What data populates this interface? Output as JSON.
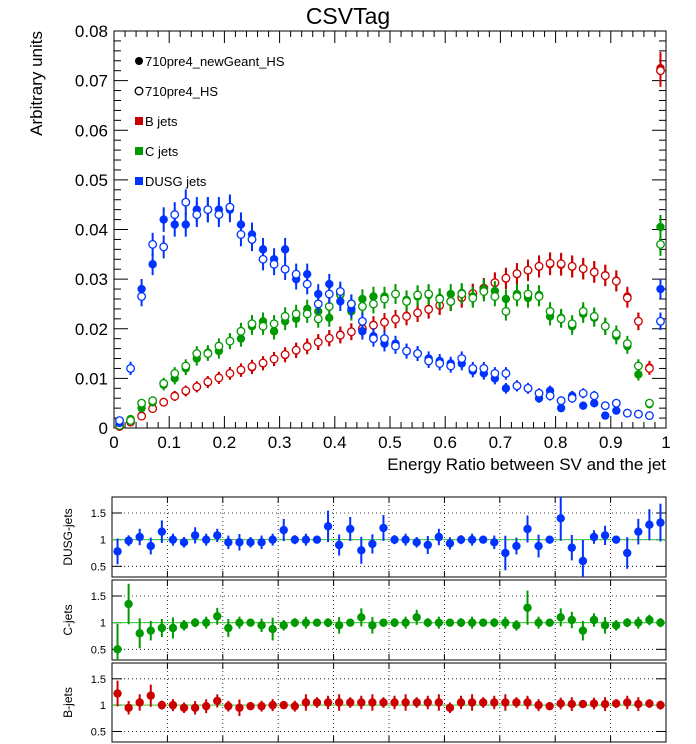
{
  "chart_data": [
    {
      "type": "scatter",
      "title": "CSVTag",
      "xlabel": "Energy Ratio between SV and the jet",
      "ylabel": "Arbitrary units",
      "xlim": [
        0,
        1
      ],
      "ylim": [
        0,
        0.08
      ],
      "x_ticks": [
        "0",
        "0.1",
        "0.2",
        "0.3",
        "0.4",
        "0.5",
        "0.6",
        "0.7",
        "0.8",
        "0.9",
        "1"
      ],
      "y_ticks": [
        "0",
        "0.01",
        "0.02",
        "0.03",
        "0.04",
        "0.05",
        "0.06",
        "0.07",
        "0.08"
      ],
      "legend_position": "top-left",
      "legend": [
        {
          "label": "710pre4_newGeant_HS",
          "marker": "filled",
          "color": "#000000"
        },
        {
          "label": "710pre4_HS",
          "marker": "open",
          "color": "#000000"
        },
        {
          "label": "B jets",
          "marker": "square",
          "color": "#cc0000"
        },
        {
          "label": "C jets",
          "marker": "square",
          "color": "#009900"
        },
        {
          "label": "DUSG jets",
          "marker": "square",
          "color": "#0033ff"
        }
      ],
      "x": [
        0.01,
        0.03,
        0.05,
        0.07,
        0.09,
        0.11,
        0.13,
        0.15,
        0.17,
        0.19,
        0.21,
        0.23,
        0.25,
        0.27,
        0.29,
        0.31,
        0.33,
        0.35,
        0.37,
        0.39,
        0.41,
        0.43,
        0.45,
        0.47,
        0.49,
        0.51,
        0.53,
        0.55,
        0.57,
        0.59,
        0.61,
        0.63,
        0.65,
        0.67,
        0.69,
        0.71,
        0.73,
        0.75,
        0.77,
        0.79,
        0.81,
        0.83,
        0.85,
        0.87,
        0.89,
        0.91,
        0.93,
        0.95,
        0.97,
        0.99
      ],
      "series": [
        {
          "name": "B jets",
          "color": "#cc0000",
          "marker": "filled",
          "values": [
            0.0003,
            0.0013,
            0.0025,
            0.004,
            0.0052,
            0.0065,
            0.0074,
            0.0083,
            0.0092,
            0.0101,
            0.011,
            0.0116,
            0.0122,
            0.013,
            0.0139,
            0.0147,
            0.0156,
            0.0165,
            0.0173,
            0.0181,
            0.0188,
            0.0194,
            0.0201,
            0.0208,
            0.0214,
            0.022,
            0.0226,
            0.0232,
            0.024,
            0.0247,
            0.0255,
            0.0262,
            0.027,
            0.0281,
            0.0292,
            0.0301,
            0.031,
            0.0318,
            0.0325,
            0.033,
            0.0329,
            0.0325,
            0.0321,
            0.0315,
            0.0308,
            0.0297,
            0.0265,
            0.0215,
            0.0122,
            0.0725
          ]
        },
        {
          "name": "B jets",
          "color": "#cc0000",
          "marker": "open",
          "values": [
            0.0003,
            0.0012,
            0.0024,
            0.0039,
            0.0052,
            0.0064,
            0.0075,
            0.0083,
            0.0093,
            0.0101,
            0.011,
            0.0117,
            0.0124,
            0.0131,
            0.0139,
            0.0148,
            0.0157,
            0.0164,
            0.0173,
            0.0181,
            0.0187,
            0.0194,
            0.02,
            0.0207,
            0.0213,
            0.0219,
            0.0225,
            0.0232,
            0.0239,
            0.0247,
            0.0255,
            0.0263,
            0.0271,
            0.0282,
            0.0293,
            0.0302,
            0.0311,
            0.0318,
            0.0326,
            0.0332,
            0.0331,
            0.0326,
            0.0321,
            0.0314,
            0.0307,
            0.0296,
            0.0262,
            0.0215,
            0.012,
            0.072
          ]
        },
        {
          "name": "C jets",
          "color": "#009900",
          "marker": "filled",
          "values": [
            0.0005,
            0.0018,
            0.004,
            0.0052,
            0.0087,
            0.01,
            0.012,
            0.014,
            0.0152,
            0.0155,
            0.0175,
            0.018,
            0.0205,
            0.0215,
            0.0195,
            0.0215,
            0.022,
            0.024,
            0.0235,
            0.0222,
            0.0268,
            0.0235,
            0.026,
            0.0265,
            0.0265,
            0.027,
            0.0258,
            0.0265,
            0.0268,
            0.0262,
            0.027,
            0.0272,
            0.0265,
            0.028,
            0.0276,
            0.026,
            0.027,
            0.0262,
            0.0268,
            0.0225,
            0.0222,
            0.0205,
            0.023,
            0.0222,
            0.0205,
            0.0185,
            0.0165,
            0.0108,
            0.0048,
            0.0405
          ]
        },
        {
          "name": "C jets",
          "color": "#009900",
          "marker": "open",
          "values": [
            0.0005,
            0.0015,
            0.005,
            0.0055,
            0.009,
            0.011,
            0.0125,
            0.015,
            0.015,
            0.0165,
            0.0175,
            0.0195,
            0.021,
            0.0205,
            0.021,
            0.0225,
            0.023,
            0.023,
            0.022,
            0.0245,
            0.027,
            0.025,
            0.0245,
            0.025,
            0.026,
            0.027,
            0.0255,
            0.0268,
            0.027,
            0.026,
            0.0255,
            0.027,
            0.0262,
            0.0275,
            0.0265,
            0.0235,
            0.0265,
            0.027,
            0.0265,
            0.0235,
            0.022,
            0.021,
            0.0235,
            0.0225,
            0.0205,
            0.019,
            0.017,
            0.0125,
            0.005,
            0.037
          ]
        },
        {
          "name": "DUSG jets",
          "color": "#0033ff",
          "marker": "filled",
          "values": [
            0.001,
            0.012,
            0.028,
            0.033,
            0.042,
            0.041,
            0.041,
            0.044,
            0.044,
            0.044,
            0.044,
            0.041,
            0.039,
            0.036,
            0.034,
            0.036,
            0.03,
            0.031,
            0.027,
            0.029,
            0.0255,
            0.024,
            0.0195,
            0.0185,
            0.017,
            0.017,
            0.0155,
            0.015,
            0.014,
            0.0135,
            0.013,
            0.013,
            0.0115,
            0.011,
            0.01,
            0.008,
            0.0085,
            0.008,
            0.006,
            0.0075,
            0.004,
            0.0065,
            0.0045,
            0.005,
            0.0025,
            0.0035,
            0.003,
            0.0028,
            0.0025,
            0.028
          ]
        },
        {
          "name": "DUSG jets",
          "color": "#0033ff",
          "marker": "open",
          "values": [
            0.0015,
            0.012,
            0.0265,
            0.037,
            0.0365,
            0.043,
            0.0455,
            0.043,
            0.044,
            0.043,
            0.0445,
            0.039,
            0.038,
            0.034,
            0.033,
            0.032,
            0.031,
            0.029,
            0.025,
            0.027,
            0.0275,
            0.025,
            0.0215,
            0.018,
            0.018,
            0.0165,
            0.0155,
            0.015,
            0.0135,
            0.013,
            0.0125,
            0.014,
            0.012,
            0.012,
            0.011,
            0.011,
            0.0085,
            0.008,
            0.007,
            0.0065,
            0.0055,
            0.006,
            0.007,
            0.0065,
            0.0045,
            0.005,
            0.003,
            0.0028,
            0.0025,
            0.0215
          ]
        }
      ]
    },
    {
      "type": "scatter",
      "ylabel": "DUSG-jets",
      "ylim": [
        0.3,
        1.8
      ],
      "y_ticks": [
        "0.5",
        "1",
        "1.5"
      ],
      "reference_line": 1,
      "x": [
        0.01,
        0.03,
        0.05,
        0.07,
        0.09,
        0.11,
        0.13,
        0.15,
        0.17,
        0.19,
        0.21,
        0.23,
        0.25,
        0.27,
        0.29,
        0.31,
        0.33,
        0.35,
        0.37,
        0.39,
        0.41,
        0.43,
        0.45,
        0.47,
        0.49,
        0.51,
        0.53,
        0.55,
        0.57,
        0.59,
        0.61,
        0.63,
        0.65,
        0.67,
        0.69,
        0.71,
        0.73,
        0.75,
        0.77,
        0.79,
        0.81,
        0.83,
        0.85,
        0.87,
        0.89,
        0.91,
        0.93,
        0.95,
        0.97,
        0.99
      ],
      "series": [
        {
          "name": "DUSG-jets",
          "color": "#0033ff",
          "values": [
            0.78,
            0.98,
            1.05,
            0.88,
            1.15,
            1.0,
            0.95,
            1.08,
            1.0,
            1.08,
            0.95,
            0.95,
            0.95,
            0.95,
            1.0,
            1.18,
            1.0,
            1.0,
            1.0,
            1.25,
            0.9,
            1.2,
            0.8,
            0.92,
            1.22,
            1.0,
            1.0,
            0.95,
            0.9,
            1.05,
            0.93,
            1.0,
            1.0,
            1.0,
            0.95,
            0.75,
            0.88,
            1.2,
            0.88,
            1.0,
            1.4,
            0.85,
            0.6,
            1.05,
            1.08,
            1.0,
            0.75,
            1.15,
            1.28,
            1.32
          ]
        }
      ]
    },
    {
      "type": "scatter",
      "ylabel": "C-jets",
      "ylim": [
        0.3,
        1.8
      ],
      "y_ticks": [
        "0.5",
        "1",
        "1.5"
      ],
      "reference_line": 1,
      "x": [
        0.01,
        0.03,
        0.05,
        0.07,
        0.09,
        0.11,
        0.13,
        0.15,
        0.17,
        0.19,
        0.21,
        0.23,
        0.25,
        0.27,
        0.29,
        0.31,
        0.33,
        0.35,
        0.37,
        0.39,
        0.41,
        0.43,
        0.45,
        0.47,
        0.49,
        0.51,
        0.53,
        0.55,
        0.57,
        0.59,
        0.61,
        0.63,
        0.65,
        0.67,
        0.69,
        0.71,
        0.73,
        0.75,
        0.77,
        0.79,
        0.81,
        0.83,
        0.85,
        0.87,
        0.89,
        0.91,
        0.93,
        0.95,
        0.97,
        0.99
      ],
      "series": [
        {
          "name": "C-jets",
          "color": "#009900",
          "values": [
            0.5,
            1.35,
            0.8,
            0.85,
            0.9,
            0.9,
            0.95,
            1.0,
            1.0,
            1.12,
            0.9,
            1.0,
            1.0,
            0.95,
            0.88,
            0.95,
            1.0,
            1.0,
            1.0,
            1.0,
            0.95,
            1.0,
            1.1,
            0.95,
            1.0,
            1.0,
            1.0,
            1.1,
            1.0,
            1.0,
            1.0,
            1.0,
            1.0,
            1.0,
            1.0,
            1.0,
            0.95,
            1.28,
            1.0,
            1.0,
            1.1,
            1.05,
            0.85,
            1.05,
            0.95,
            0.95,
            1.0,
            1.0,
            1.05,
            1.0
          ]
        }
      ]
    },
    {
      "type": "scatter",
      "ylabel": "B-jets",
      "ylim": [
        0.3,
        1.8
      ],
      "y_ticks": [
        "0.5",
        "1",
        "1.5"
      ],
      "reference_line": 1,
      "x": [
        0.01,
        0.03,
        0.05,
        0.07,
        0.09,
        0.11,
        0.13,
        0.15,
        0.17,
        0.19,
        0.21,
        0.23,
        0.25,
        0.27,
        0.29,
        0.31,
        0.33,
        0.35,
        0.37,
        0.39,
        0.41,
        0.43,
        0.45,
        0.47,
        0.49,
        0.51,
        0.53,
        0.55,
        0.57,
        0.59,
        0.61,
        0.63,
        0.65,
        0.67,
        0.69,
        0.71,
        0.73,
        0.75,
        0.77,
        0.79,
        0.81,
        0.83,
        0.85,
        0.87,
        0.89,
        0.91,
        0.93,
        0.95,
        0.97,
        0.99
      ],
      "series": [
        {
          "name": "B-jets",
          "color": "#cc0000",
          "values": [
            1.22,
            0.95,
            1.05,
            1.18,
            1.0,
            1.0,
            0.95,
            0.95,
            0.98,
            1.08,
            0.98,
            0.95,
            0.98,
            0.98,
            1.0,
            1.0,
            0.98,
            1.05,
            1.05,
            1.05,
            1.05,
            1.05,
            1.05,
            1.05,
            1.05,
            1.05,
            1.05,
            1.05,
            1.05,
            1.05,
            0.95,
            1.05,
            1.05,
            1.05,
            1.05,
            1.05,
            1.05,
            1.05,
            1.0,
            0.98,
            1.03,
            1.02,
            1.02,
            1.03,
            1.02,
            1.03,
            1.05,
            1.02,
            1.03,
            1.0
          ]
        }
      ]
    }
  ]
}
